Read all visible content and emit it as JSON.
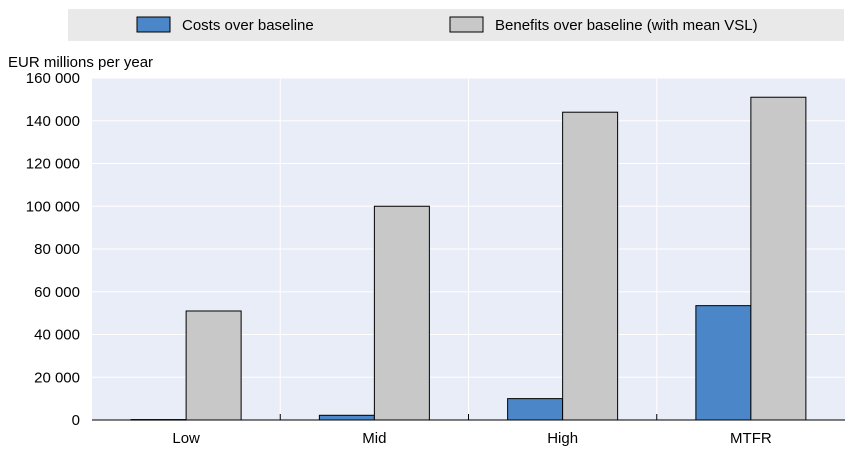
{
  "chart_data": {
    "type": "bar",
    "ylabel": "EUR millions per year",
    "xlabel": "",
    "categories": [
      "Low",
      "Mid",
      "High",
      "MTFR"
    ],
    "series": [
      {
        "name": "Costs over baseline",
        "values": [
          200,
          2200,
          10000,
          53500
        ]
      },
      {
        "name": "Benefits over baseline (with mean VSL)",
        "values": [
          51000,
          100000,
          144000,
          151000
        ]
      }
    ],
    "ylim": [
      0,
      160000
    ],
    "yticks": [
      0,
      20000,
      40000,
      60000,
      80000,
      100000,
      120000,
      140000,
      160000
    ],
    "ytick_labels": [
      "0",
      "20 000",
      "40 000",
      "60 000",
      "80 000",
      "100 000",
      "120 000",
      "140 000",
      "160 000"
    ],
    "grid": true,
    "legend_position": "top"
  },
  "colors": {
    "plot_background": "#e9edf7",
    "legend_background": "#e9e9e9",
    "costs": "#4a86c8",
    "benefits": "#c8c8c8",
    "grid": "#ffffff",
    "axis": "#000000"
  }
}
